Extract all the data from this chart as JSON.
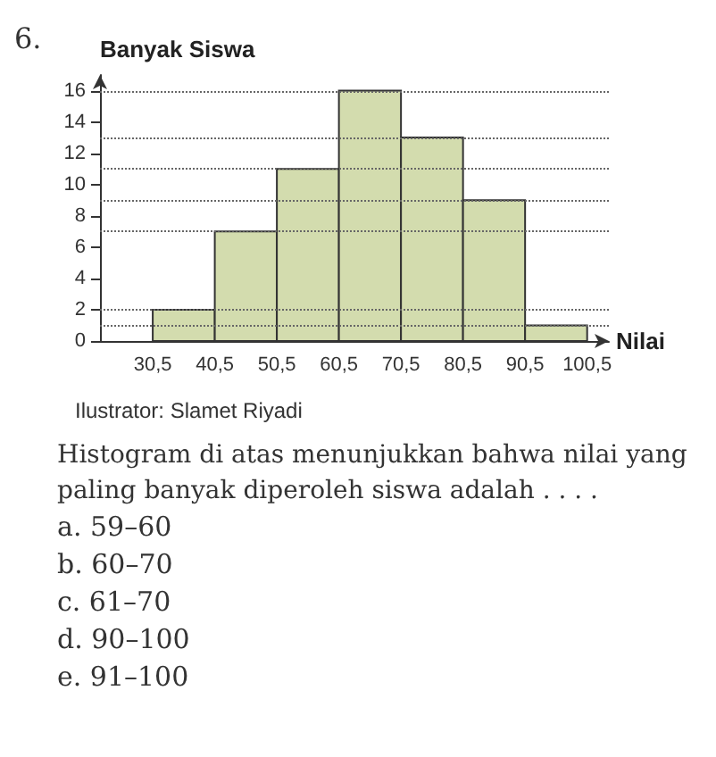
{
  "chart_data": {
    "type": "histogram",
    "ylabel": "Banyak Siswa",
    "xlabel": "Nilai",
    "bins": [
      30.5,
      40.5,
      50.5,
      60.5,
      70.5,
      80.5,
      90.5,
      100.5
    ],
    "values": [
      2,
      7,
      11,
      16,
      13,
      9,
      1
    ],
    "color": "#d3dcae",
    "xlim": [
      22,
      104
    ],
    "xticks": [
      {
        "value": 30.5,
        "label": "30,5"
      },
      {
        "value": 40.5,
        "label": "40,5"
      },
      {
        "value": 50.5,
        "label": "50,5"
      },
      {
        "value": 60.5,
        "label": "60,5"
      },
      {
        "value": 70.5,
        "label": "70,5"
      },
      {
        "value": 80.5,
        "label": "80,5"
      },
      {
        "value": 90.5,
        "label": "90,5"
      },
      {
        "value": 100.5,
        "label": "100,5"
      }
    ],
    "ylim": [
      0,
      17
    ],
    "yticks": [
      0,
      2,
      4,
      6,
      8,
      10,
      12,
      14,
      16
    ],
    "grid": false,
    "ref_lines": [
      {
        "axis": "y",
        "value": 16,
        "line_style": "dotted"
      },
      {
        "axis": "y",
        "value": 13,
        "line_style": "dotted"
      },
      {
        "axis": "y",
        "value": 11,
        "line_style": "dotted"
      },
      {
        "axis": "y",
        "value": 9,
        "line_style": "dotted"
      },
      {
        "axis": "y",
        "value": 7,
        "line_style": "dotted"
      },
      {
        "axis": "y",
        "value": 2,
        "line_style": "dotted"
      },
      {
        "axis": "y",
        "value": 1,
        "line_style": "dotted"
      }
    ],
    "annotations": [
      "6.",
      "Ilustrator: Slamet Riyadi",
      "Histogram di atas menunjukkan bahwa nilai yang paling banyak diperoleh siswa adalah . . . .",
      "a.  59–60",
      "b.  60–70",
      "c.  61–70",
      "d.  90–100",
      "e.  91–100"
    ]
  }
}
